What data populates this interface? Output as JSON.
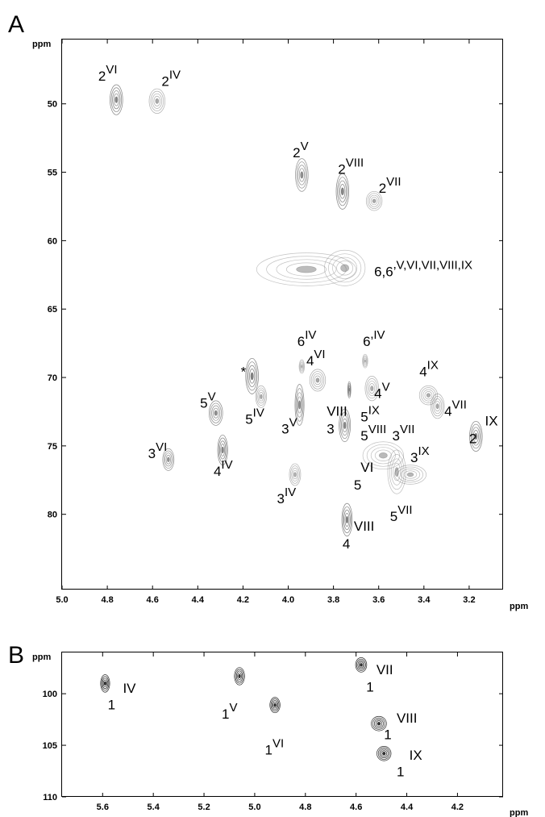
{
  "colors": {
    "peaks_A": "#6e6e6e",
    "peaks_B": "#111111",
    "axes": "#000000"
  },
  "chart_data": [
    {
      "type": "scatter",
      "panel": "A",
      "xlabel": "ppm",
      "ylabel": "ppm",
      "xlim": [
        5.0,
        3.05
      ],
      "ylim": [
        45.3,
        85.5
      ],
      "x_reversed": true,
      "y_reversed": true,
      "xticks": [
        "5.0",
        "4.8",
        "4.6",
        "4.4",
        "4.2",
        "4.0",
        "3.8",
        "3.6",
        "3.4",
        "3.2"
      ],
      "yticks": [
        "50",
        "55",
        "60",
        "65",
        "70",
        "75",
        "80"
      ],
      "points": [
        {
          "x": 4.76,
          "y": 49.7,
          "w": 0.028,
          "h": 1.1,
          "dark": 0.85
        },
        {
          "x": 4.58,
          "y": 49.8,
          "w": 0.035,
          "h": 0.9,
          "dark": 0.35
        },
        {
          "x": 3.94,
          "y": 55.2,
          "w": 0.028,
          "h": 1.2,
          "dark": 0.7
        },
        {
          "x": 3.76,
          "y": 56.4,
          "w": 0.028,
          "h": 1.3,
          "dark": 0.85
        },
        {
          "x": 3.62,
          "y": 57.1,
          "w": 0.035,
          "h": 0.7,
          "dark": 0.35
        },
        {
          "x": 3.92,
          "y": 62.1,
          "w": 0.22,
          "h": 1.2,
          "dark": 0.12
        },
        {
          "x": 3.75,
          "y": 62.0,
          "w": 0.09,
          "h": 1.3,
          "dark": 0.12
        },
        {
          "x": 3.94,
          "y": 69.2,
          "w": 0.012,
          "h": 0.5,
          "dark": 0.15
        },
        {
          "x": 3.66,
          "y": 68.8,
          "w": 0.012,
          "h": 0.5,
          "dark": 0.15
        },
        {
          "x": 3.87,
          "y": 70.2,
          "w": 0.035,
          "h": 0.8,
          "dark": 0.4
        },
        {
          "x": 3.73,
          "y": 70.9,
          "w": 0.006,
          "h": 0.6,
          "dark": 0.6
        },
        {
          "x": 3.63,
          "y": 70.8,
          "w": 0.03,
          "h": 0.9,
          "dark": 0.3
        },
        {
          "x": 4.16,
          "y": 69.9,
          "w": 0.028,
          "h": 1.3,
          "dark": 0.9
        },
        {
          "x": 4.32,
          "y": 72.6,
          "w": 0.03,
          "h": 0.9,
          "dark": 0.75
        },
        {
          "x": 4.12,
          "y": 71.4,
          "w": 0.024,
          "h": 0.8,
          "dark": 0.35
        },
        {
          "x": 3.95,
          "y": 72.0,
          "w": 0.02,
          "h": 1.5,
          "dark": 0.75
        },
        {
          "x": 3.75,
          "y": 73.5,
          "w": 0.025,
          "h": 1.2,
          "dark": 0.8
        },
        {
          "x": 3.38,
          "y": 71.3,
          "w": 0.04,
          "h": 0.7,
          "dark": 0.3
        },
        {
          "x": 3.34,
          "y": 72.1,
          "w": 0.03,
          "h": 0.9,
          "dark": 0.35
        },
        {
          "x": 3.17,
          "y": 74.3,
          "w": 0.028,
          "h": 1.1,
          "dark": 0.85
        },
        {
          "x": 4.53,
          "y": 76.0,
          "w": 0.025,
          "h": 0.8,
          "dark": 0.65
        },
        {
          "x": 4.29,
          "y": 75.3,
          "w": 0.022,
          "h": 1.1,
          "dark": 0.85
        },
        {
          "x": 3.97,
          "y": 77.1,
          "w": 0.025,
          "h": 0.8,
          "dark": 0.3
        },
        {
          "x": 3.58,
          "y": 75.7,
          "w": 0.09,
          "h": 1.0,
          "dark": 0.15
        },
        {
          "x": 3.52,
          "y": 76.9,
          "w": 0.04,
          "h": 1.6,
          "dark": 0.2
        },
        {
          "x": 3.46,
          "y": 77.1,
          "w": 0.07,
          "h": 0.7,
          "dark": 0.2
        },
        {
          "x": 3.74,
          "y": 80.4,
          "w": 0.023,
          "h": 1.2,
          "dark": 0.85
        }
      ],
      "annotations": [
        {
          "base": "2",
          "sup": "VI",
          "x": 4.84,
          "y": 48.3
        },
        {
          "base": "2",
          "sup": "IV",
          "x": 4.56,
          "y": 48.7
        },
        {
          "base": "2",
          "sup": "V",
          "x": 3.98,
          "y": 53.9
        },
        {
          "base": "2",
          "sup": "VIII",
          "x": 3.78,
          "y": 55.1
        },
        {
          "base": "2",
          "sup": "VII",
          "x": 3.6,
          "y": 56.5
        },
        {
          "base": "6,6’",
          "sup": "V,VI,VII,VIII,IX",
          "x": 3.62,
          "y": 62.6
        },
        {
          "base": "6",
          "sup": "IV",
          "x": 3.96,
          "y": 67.7
        },
        {
          "base": "4",
          "sup": "VI",
          "x": 3.92,
          "y": 69.1
        },
        {
          "base": "6’",
          "sup": "IV",
          "x": 3.67,
          "y": 67.7
        },
        {
          "base": "4",
          "sup": "IX",
          "x": 3.42,
          "y": 69.9
        },
        {
          "base": "4",
          "sup": "V",
          "x": 3.62,
          "y": 71.5
        },
        {
          "base": "4",
          "sup": "VII",
          "x": 3.31,
          "y": 72.8
        },
        {
          "base": "IX",
          "sup": "",
          "x": 3.13,
          "y": 73.5
        },
        {
          "base": "2",
          "sup": "",
          "x": 3.2,
          "y": 74.8
        },
        {
          "base": "*",
          "sup": "",
          "x": 4.21,
          "y": 69.9
        },
        {
          "base": "5",
          "sup": "V",
          "x": 4.39,
          "y": 72.2
        },
        {
          "base": "5",
          "sup": "IV",
          "x": 4.19,
          "y": 73.4
        },
        {
          "base": "3",
          "sup": "V",
          "x": 4.03,
          "y": 74.1
        },
        {
          "base": "VIII",
          "sup": "",
          "x": 3.83,
          "y": 72.8
        },
        {
          "base": "3",
          "sup": "",
          "x": 3.83,
          "y": 74.1
        },
        {
          "base": "5",
          "sup": "IX",
          "x": 3.68,
          "y": 73.2
        },
        {
          "base": "5",
          "sup": "VIII",
          "x": 3.68,
          "y": 74.6
        },
        {
          "base": "3",
          "sup": "VII",
          "x": 3.54,
          "y": 74.6
        },
        {
          "base": "3",
          "sup": "IX",
          "x": 3.46,
          "y": 76.2
        },
        {
          "base": "3",
          "sup": "VI",
          "x": 4.62,
          "y": 75.9
        },
        {
          "base": "4",
          "sup": "IV",
          "x": 4.33,
          "y": 77.2
        },
        {
          "base": "3",
          "sup": "IV",
          "x": 4.05,
          "y": 79.2
        },
        {
          "base": "VI",
          "sup": "",
          "x": 3.68,
          "y": 76.9
        },
        {
          "base": "5",
          "sup": "",
          "x": 3.71,
          "y": 78.2
        },
        {
          "base": "5",
          "sup": "VII",
          "x": 3.55,
          "y": 80.5
        },
        {
          "base": "VIII",
          "sup": "",
          "x": 3.71,
          "y": 81.2
        },
        {
          "base": "4",
          "sup": "",
          "x": 3.76,
          "y": 82.5
        }
      ]
    },
    {
      "type": "scatter",
      "panel": "B",
      "xlabel": "ppm",
      "ylabel": "ppm",
      "xlim": [
        5.76,
        4.02
      ],
      "ylim": [
        96.0,
        110.0
      ],
      "x_reversed": true,
      "y_reversed": true,
      "xticks": [
        "5.6",
        "5.4",
        "5.2",
        "5.0",
        "4.8",
        "4.6",
        "4.4",
        "4.2"
      ],
      "yticks": [
        "100",
        "105",
        "110"
      ],
      "points": [
        {
          "x": 5.59,
          "y": 99.0,
          "w": 0.018,
          "h": 0.85,
          "dark": 0.9
        },
        {
          "x": 5.06,
          "y": 98.3,
          "w": 0.02,
          "h": 0.85,
          "dark": 0.85
        },
        {
          "x": 4.92,
          "y": 101.1,
          "w": 0.02,
          "h": 0.75,
          "dark": 0.9
        },
        {
          "x": 4.58,
          "y": 97.2,
          "w": 0.022,
          "h": 0.7,
          "dark": 0.9
        },
        {
          "x": 4.51,
          "y": 102.9,
          "w": 0.03,
          "h": 0.7,
          "dark": 0.85
        },
        {
          "x": 4.49,
          "y": 105.8,
          "w": 0.028,
          "h": 0.7,
          "dark": 0.9
        }
      ],
      "annotations": [
        {
          "base": "IV",
          "sup": "",
          "x": 5.52,
          "y": 99.9
        },
        {
          "base": "1",
          "sup": "",
          "x": 5.58,
          "y": 101.5
        },
        {
          "base": "1",
          "sup": "V",
          "x": 5.13,
          "y": 102.4
        },
        {
          "base": "1",
          "sup": "VI",
          "x": 4.96,
          "y": 105.9
        },
        {
          "base": "VII",
          "sup": "",
          "x": 4.52,
          "y": 98.1
        },
        {
          "base": "1",
          "sup": "",
          "x": 4.56,
          "y": 99.8
        },
        {
          "base": "VIII",
          "sup": "",
          "x": 4.44,
          "y": 102.8
        },
        {
          "base": "1",
          "sup": "",
          "x": 4.49,
          "y": 104.4
        },
        {
          "base": "IX",
          "sup": "",
          "x": 4.39,
          "y": 106.4
        },
        {
          "base": "1",
          "sup": "",
          "x": 4.44,
          "y": 108.0
        }
      ]
    }
  ],
  "panel_letters": [
    "A",
    "B"
  ]
}
